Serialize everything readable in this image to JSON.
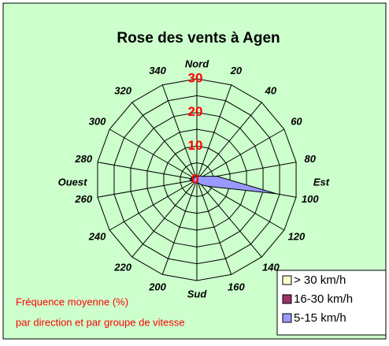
{
  "chart_data": {
    "type": "radar",
    "title": "Rose des vents à Agen",
    "categories": [
      "Nord",
      "20",
      "40",
      "60",
      "80",
      "100",
      "120",
      "140",
      "160",
      "Sud",
      "200",
      "220",
      "240",
      "260",
      "280",
      "300",
      "320",
      "340"
    ],
    "angles": [
      0,
      20,
      40,
      60,
      80,
      100,
      120,
      140,
      160,
      180,
      200,
      220,
      240,
      260,
      280,
      300,
      320,
      340
    ],
    "compass_labels": [
      {
        "angle": 90,
        "label": "Est"
      },
      {
        "angle": 270,
        "label": "Ouest"
      }
    ],
    "series": [
      {
        "name": "> 30 km/h",
        "color": "#ffffcc",
        "values": [
          0,
          0,
          0,
          0,
          0,
          0,
          0,
          0,
          0,
          0,
          0,
          0,
          0,
          0,
          0,
          0,
          0,
          0
        ]
      },
      {
        "name": "16-30 km/h",
        "color": "#993366",
        "values": [
          1,
          0.5,
          0.5,
          0.5,
          0.5,
          0.5,
          0.5,
          0.5,
          0.5,
          0.5,
          0.5,
          1,
          1,
          2,
          2,
          1.5,
          1,
          1
        ]
      },
      {
        "name": "5-15 km/h",
        "color": "#9999ff",
        "values": [
          1,
          1,
          1.5,
          2,
          6,
          24,
          4,
          2,
          1,
          1,
          1,
          1,
          1,
          1.5,
          1.5,
          1,
          1,
          1
        ]
      }
    ],
    "ylim": [
      0,
      30
    ],
    "yticks": [
      0,
      10,
      20,
      30
    ],
    "yminor": [
      5,
      15,
      25
    ],
    "grid": true,
    "annotations": [
      "Fréquence moyenne (%)",
      "par direction et  par groupe de vitesse"
    ]
  }
}
